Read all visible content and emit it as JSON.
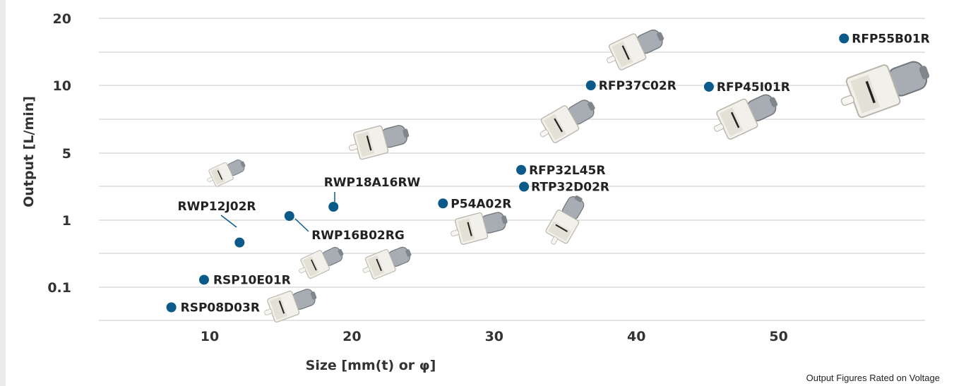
{
  "colors": {
    "accent": "#0b5a8a",
    "grid": "#c8c8c8",
    "text": "#333333"
  },
  "note": "Output Figures Rated on Voltage",
  "chart_data": {
    "type": "scatter",
    "xlabel": "Size [mm(t) or φ]",
    "ylabel": "Output [L/min]",
    "x_ticks": [
      "10",
      "20",
      "30",
      "40",
      "50"
    ],
    "y_ticks": [
      "0.1",
      "1",
      "5",
      "10",
      "20"
    ],
    "points": [
      {
        "name": "RSP08D03R",
        "x": 7.3,
        "y": 0.07
      },
      {
        "name": "RSP10E01R",
        "x": 9.6,
        "y": 0.2
      },
      {
        "name": "RWP12J02R",
        "x": 12.1,
        "y": 0.7
      },
      {
        "name": "RWP16B02RG",
        "x": 15.6,
        "y": 1.25
      },
      {
        "name": "RWP18A16RW",
        "x": 18.7,
        "y": 1.8
      },
      {
        "name": "P54A02R",
        "x": 26.4,
        "y": 2.0
      },
      {
        "name": "RTP32D02R",
        "x": 32.1,
        "y": 3.0
      },
      {
        "name": "RFP32L45R",
        "x": 31.9,
        "y": 4.0
      },
      {
        "name": "RFP37C02R",
        "x": 36.8,
        "y": 10.0
      },
      {
        "name": "RFP45I01R",
        "x": 45.1,
        "y": 9.9
      },
      {
        "name": "RFP55B01R",
        "x": 54.6,
        "y": 17.0
      }
    ],
    "products": [
      {
        "name": "RWP12J02R-pump"
      },
      {
        "name": "RSP10E01R-pump"
      },
      {
        "name": "RSP08D03R-pump"
      },
      {
        "name": "RWP16B02RG-pump"
      },
      {
        "name": "RWP18A16RW-pump"
      },
      {
        "name": "P54A02R-pump"
      },
      {
        "name": "RTP32D02R-pump"
      },
      {
        "name": "RFP32L45R-pump"
      },
      {
        "name": "RFP37C02R-pump"
      },
      {
        "name": "RFP45I01R-pump"
      },
      {
        "name": "RFP55B01R-pump"
      }
    ]
  }
}
